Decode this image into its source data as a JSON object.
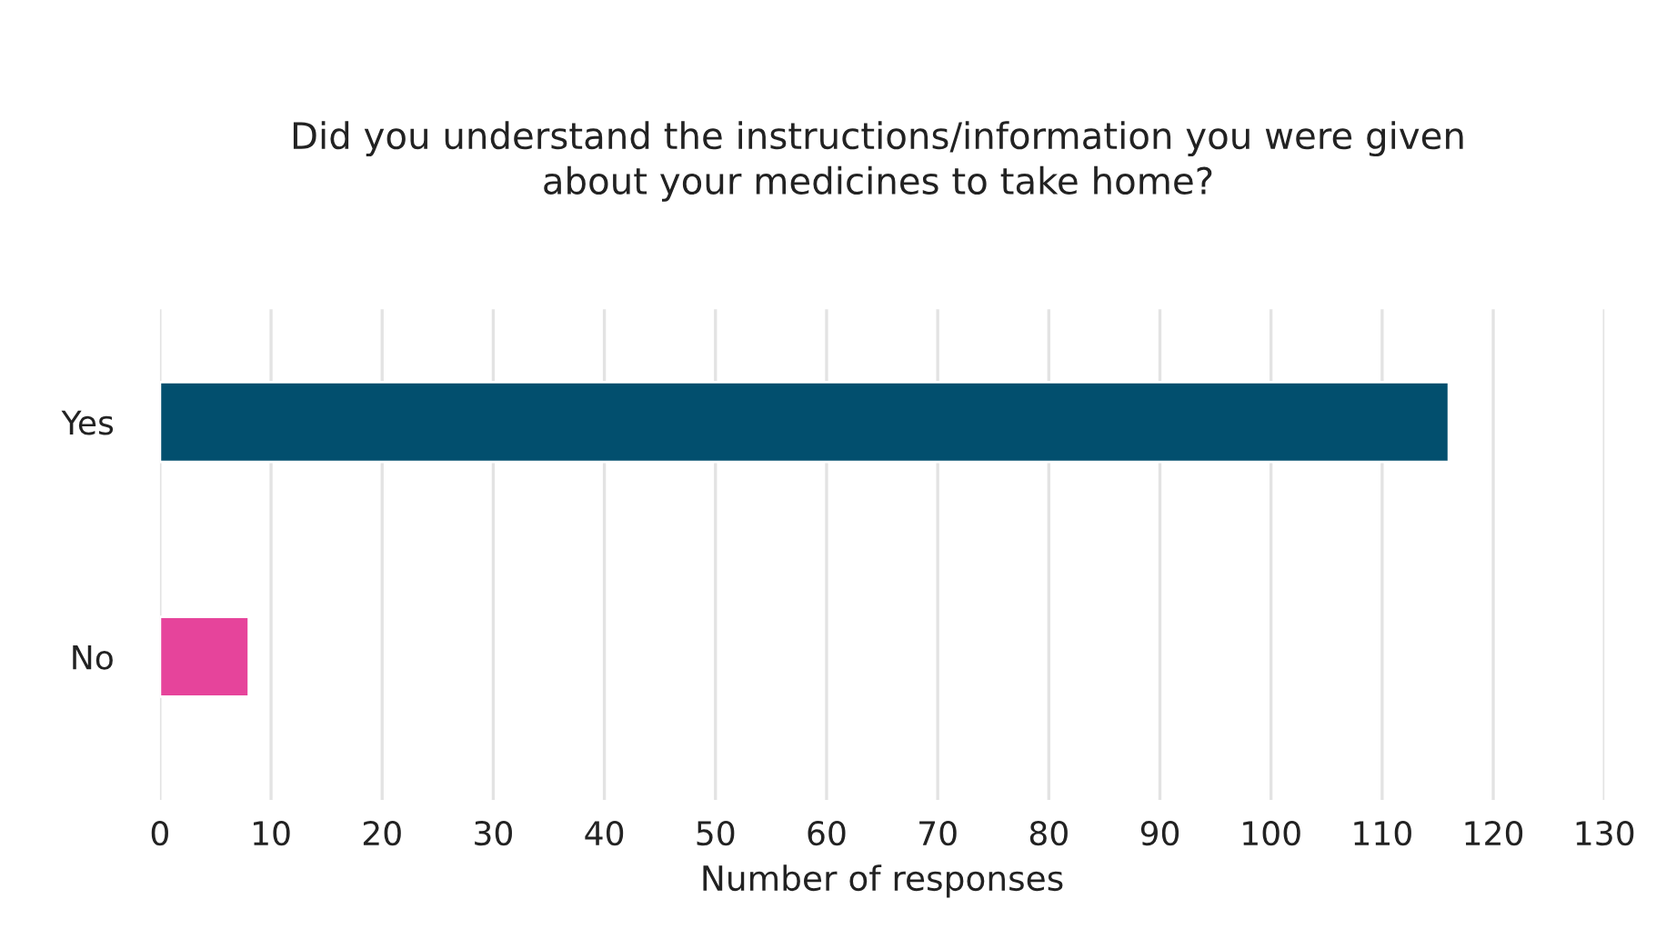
{
  "chart_data": {
    "type": "bar",
    "orientation": "horizontal",
    "title": "Did you understand the instructions/information you were given\nabout your medicines to take home?",
    "xlabel": "Number of responses",
    "categories": [
      "Yes",
      "No"
    ],
    "values": [
      116,
      8
    ],
    "colors": [
      "#024f6e",
      "#e6449b"
    ],
    "xlim": [
      0,
      130
    ],
    "xticks": [
      0,
      10,
      20,
      30,
      40,
      50,
      60,
      70,
      80,
      90,
      100,
      110,
      120,
      130
    ],
    "grid": "x"
  }
}
